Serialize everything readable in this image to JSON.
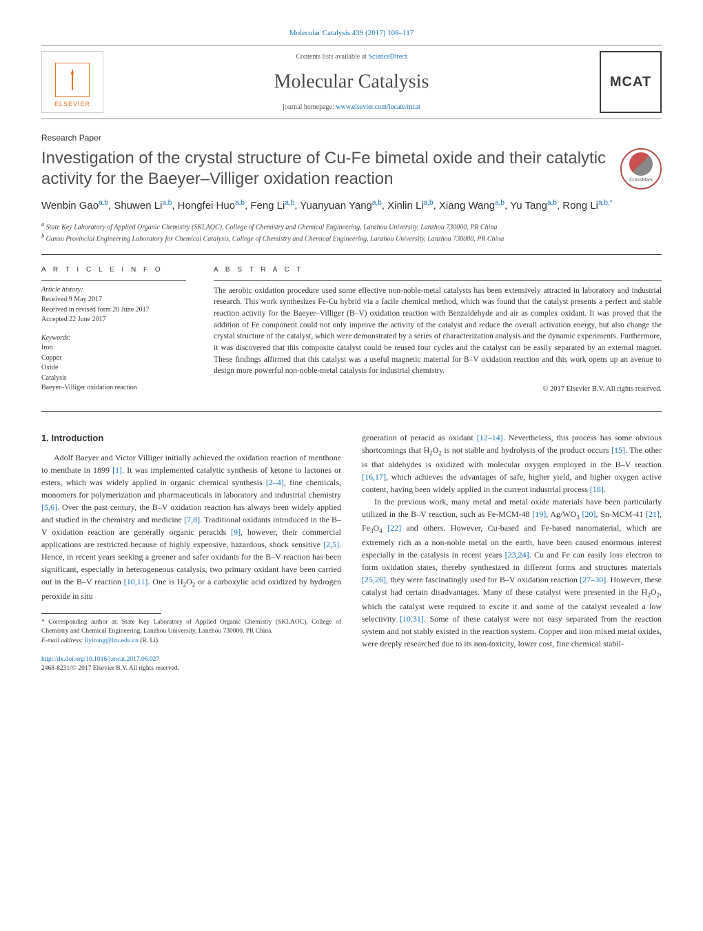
{
  "header": {
    "citation": "Molecular Catalysis 439 (2017) 108–117",
    "contents_label": "Contents lists available at ",
    "contents_link": "ScienceDirect",
    "journal_name": "Molecular Catalysis",
    "homepage_label": "journal homepage: ",
    "homepage_link": "www.elsevier.com/locate/mcat",
    "publisher_label": "ELSEVIER",
    "cover_label": "MCAT"
  },
  "paper": {
    "type": "Research Paper",
    "title": "Investigation of the crystal structure of Cu-Fe bimetal oxide and their catalytic activity for the Baeyer–Villiger oxidation reaction",
    "crossmark_label": "CrossMark"
  },
  "authors": {
    "list_prefix": "Wenbin Gao",
    "list_html_parts": [
      {
        "name": "Wenbin Gao",
        "aff": "a,b"
      },
      {
        "name": "Shuwen Li",
        "aff": "a,b"
      },
      {
        "name": "Hongfei Huo",
        "aff": "a,b"
      },
      {
        "name": "Feng Li",
        "aff": "a,b"
      },
      {
        "name": "Yuanyuan Yang",
        "aff": "a,b"
      },
      {
        "name": "Xinlin Li",
        "aff": "a,b"
      },
      {
        "name": "Xiang Wang",
        "aff": "a,b"
      },
      {
        "name": "Yu Tang",
        "aff": "a,b"
      },
      {
        "name": "Rong Li",
        "aff": "a,b,*"
      }
    ]
  },
  "affiliations": {
    "a": "State Key Laboratory of Applied Organic Chemistry (SKLAOC), College of Chemistry and Chemical Engineering, Lanzhou University, Lanzhou 730000, PR China",
    "b": "Gansu Provincial Engineering Laboratory for Chemical Catalysis, College of Chemistry and Chemical Engineering, Lanzhou University, Lanzhou 730000, PR China"
  },
  "article_info": {
    "heading": "a r t i c l e   i n f o",
    "history_label": "Article history:",
    "received": "Received 9 May 2017",
    "revised": "Received in revised form 20 June 2017",
    "accepted": "Accepted 22 June 2017",
    "keywords_label": "Keywords:",
    "keywords": [
      "Iron",
      "Copper",
      "Oxide",
      "Catalysis",
      "Baeyer–Villiger oxidation reaction"
    ]
  },
  "abstract": {
    "heading": "a b s t r a c t",
    "text": "The aerobic oxidation procedure used some effective non-noble-metal catalysts has been extensively attracted in laboratory and industrial research. This work synthesizes Fe-Cu hybrid via a facile chemical method, which was found that the catalyst presents a perfect and stable reaction activity for the Baeyer–Villiger (B–V) oxidation reaction with Benzaldehyde and air as complex oxidant. It was proved that the addition of Fe component could not only improve the activity of the catalyst and reduce the overall activation energy, but also change the crystal structure of the catalyst, which were demonstrated by a series of characterization analysis and the dynamic experiments. Furthermore, it was discovered that this composite catalyst could be reused four cycles and the catalyst can be easily separated by an external magnet. These findings affirmed that this catalyst was a useful magnetic material for B–V oxidation reaction and this work opens up an avenue to design more powerful non-noble-metal catalysts for industrial chemistry.",
    "copyright": "© 2017 Elsevier B.V. All rights reserved."
  },
  "body": {
    "intro_heading": "1. Introduction",
    "col1_p1_a": "Adolf Baeyer and Victor Villiger initially achieved the oxidation reaction of menthone to menthate in 1899 ",
    "ref1": "[1]",
    "col1_p1_b": ". It was implemented catalytic synthesis of ketone to lactones or esters, which was widely applied in organic chemical synthesis ",
    "ref2_4": "[2–4]",
    "col1_p1_c": ", fine chemicals, monomers for polymerization and pharmaceuticals in laboratory and industrial chemistry ",
    "ref5_6": "[5,6]",
    "col1_p1_d": ". Over the past century, the B–V oxidation reaction has always been widely applied and studied in the chemistry and medicine ",
    "ref7_8": "[7,8]",
    "col1_p1_e": ". Traditional oxidants introduced in the B–V oxidation reaction are generally organic peracids ",
    "ref9": "[9]",
    "col1_p1_f": ", however, their commercial applications are restricted because of highly expensive, hazardous, shock sensitive ",
    "ref2_5": "[2,5]",
    "col1_p1_g": ". Hence, in recent years seeking a greener and safer oxidants for the B–V reaction has been significant, especially in heterogeneous catalysis, two primary oxidant have been carried out in the B–V reaction ",
    "ref10_11": "[10,11]",
    "col1_p1_h": ". One is H",
    "col1_p1_h_sub": "2",
    "col1_p1_i": "O",
    "col1_p1_i_sub": "2",
    "col1_p1_j": " or a carboxylic acid oxidized by hydrogen peroxide in situ",
    "col2_p1_a": "generation of peracid as oxidant ",
    "ref12_14": "[12–14]",
    "col2_p1_b": ". Nevertheless, this process has some obvious shortcomings that H",
    "col2_p1_b_sub1": "2",
    "col2_p1_b2": "O",
    "col2_p1_b_sub2": "2",
    "col2_p1_c": " is not stable and hydrolysis of the product occurs ",
    "ref15": "[15]",
    "col2_p1_d": ". The other is that aldehydes is oxidized with molecular oxygen employed in the B–V reaction ",
    "ref16_17": "[16,17]",
    "col2_p1_e": ", which achieves the advantages of safe, higher yield, and higher oxygen active content, having been widely applied in the current industrial process ",
    "ref18": "[18]",
    "col2_p1_f": ".",
    "col2_p2_a": "In the previous work, many metal and metal oxide materials have been particularly utilized in the B–V reaction, such as Fe-MCM-48 ",
    "ref19": "[19]",
    "col2_p2_b": ", Ag/WO",
    "col2_p2_b_sub": "3",
    "col2_p2_b2": " ",
    "ref20": "[20]",
    "col2_p2_c": ", Sn-MCM-41 ",
    "ref21": "[21]",
    "col2_p2_d": ", Fe",
    "col2_p2_d_sub1": "3",
    "col2_p2_d2": "O",
    "col2_p2_d_sub2": "4",
    "col2_p2_d3": " ",
    "ref22": "[22]",
    "col2_p2_e": " and others. However, Cu-based and Fe-based nanomaterial, which are extremely rich as a non-noble metal on the earth, have been caused enormous interest especially in the catalysis in recent years ",
    "ref23_24": "[23,24]",
    "col2_p2_f": ". Cu and Fe can easily loss electron to form oxidation states, thereby synthesized in different forms and structures materials ",
    "ref25_26": "[25,26]",
    "col2_p2_g": ", they were fascinatingly used for B–V oxidation reaction ",
    "ref27_30": "[27–30]",
    "col2_p2_h": ". However, these catalyst had certain disadvantages. Many of these catalyst were presented in the H",
    "col2_p2_h_sub1": "2",
    "col2_p2_h2": "O",
    "col2_p2_h_sub2": "2",
    "col2_p2_i": ", which the catalyst were required to excite it and some of the catalyst revealed a low selectivity ",
    "ref10_31": "[10,31]",
    "col2_p2_j": ". Some of these catalyst were not easy separated from the reaction system and not stably existed in the reaction system. Copper and iron mixed metal oxides, were deeply researched due to its non-toxicity, lower cost, fine chemical stabil-"
  },
  "footnotes": {
    "corresponding": "* Corresponding author at: State Key Laboratory of Applied Organic Chemistry (SKLAOC), College of Chemistry and Chemical Engineering, Lanzhou University, Lanzhou 730000, PR China.",
    "email_label": "E-mail address: ",
    "email": "liyirong@lzu.edu.cn",
    "email_suffix": " (R. Li)."
  },
  "doi": {
    "url": "http://dx.doi.org/10.1016/j.mcat.2017.06.027",
    "copyright_line": "2468-8231/© 2017 Elsevier B.V. All rights reserved."
  },
  "colors": {
    "link": "#1a6fb8",
    "text": "#333333",
    "elsevier_orange": "#e37222",
    "rule": "#333333"
  }
}
